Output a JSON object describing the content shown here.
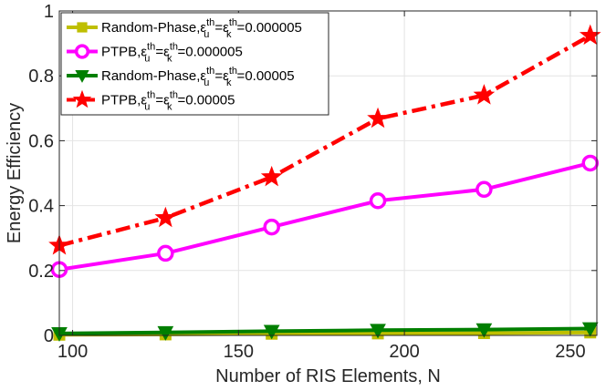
{
  "chart_data": {
    "type": "line",
    "xlabel": "Number of RIS Elements, N",
    "ylabel": "Energy Efficiency",
    "xlim": [
      96,
      258
    ],
    "ylim": [
      0,
      1
    ],
    "xticks": [
      100,
      150,
      200,
      250
    ],
    "yticks": [
      0,
      0.2,
      0.4,
      0.6,
      0.8,
      1
    ],
    "grid": true,
    "legend_position": "top-left",
    "series": [
      {
        "legend": {
          "prefix": "Random-Phase,",
          "value": "0.000005"
        },
        "color": "#bfbf00",
        "marker": "square",
        "line_style": "solid",
        "x": [
          96,
          128,
          160,
          192,
          224,
          256
        ],
        "y": [
          0.002,
          0.003,
          0.005,
          0.006,
          0.007,
          0.009
        ]
      },
      {
        "legend": {
          "prefix": "PTPB,",
          "value": "0.000005"
        },
        "color": "#ff00ff",
        "marker": "circle",
        "line_style": "solid",
        "x": [
          96,
          128,
          160,
          192,
          224,
          256
        ],
        "y": [
          0.203,
          0.253,
          0.334,
          0.415,
          0.45,
          0.531
        ]
      },
      {
        "legend": {
          "prefix": "Random-Phase,",
          "value": "0.00005"
        },
        "color": "#007f00",
        "marker": "triangle-down",
        "line_style": "solid",
        "x": [
          96,
          128,
          160,
          192,
          224,
          256
        ],
        "y": [
          0.006,
          0.009,
          0.013,
          0.016,
          0.018,
          0.021
        ]
      },
      {
        "legend": {
          "prefix": "PTPB,",
          "value": "0.00005"
        },
        "color": "#ff0000",
        "marker": "star",
        "line_style": "dashdot",
        "x": [
          96,
          128,
          160,
          192,
          224,
          256
        ],
        "y": [
          0.277,
          0.362,
          0.488,
          0.668,
          0.74,
          0.924
        ]
      }
    ]
  }
}
